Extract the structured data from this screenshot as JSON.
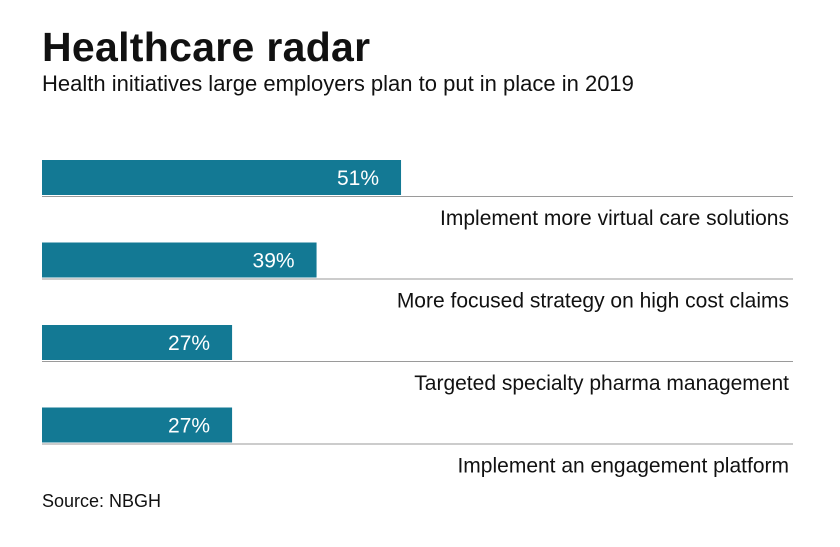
{
  "header": {
    "title": "Healthcare radar",
    "subtitle": "Health initiatives large employers plan to put in place in 2019"
  },
  "footer": {
    "source": "Source: NBGH"
  },
  "colors": {
    "bar": "#137994",
    "bar_label": "#ffffff",
    "rule": "#9a9a9a",
    "text": "#111111"
  },
  "chart_data": {
    "type": "bar",
    "orientation": "horizontal",
    "categories": [
      "Implement more virtual care solutions",
      "More focused strategy on high cost claims",
      "Targeted specialty pharma management",
      "Implement an engagement platform"
    ],
    "values": [
      51,
      39,
      27,
      27
    ],
    "value_labels": [
      "51%",
      "39%",
      "27%",
      "27%"
    ],
    "xlim": [
      0,
      100
    ],
    "grid": false,
    "legend": "none",
    "title": "Healthcare radar",
    "subtitle": "Health initiatives large employers plan to put in place in 2019",
    "xlabel": "",
    "ylabel": ""
  }
}
